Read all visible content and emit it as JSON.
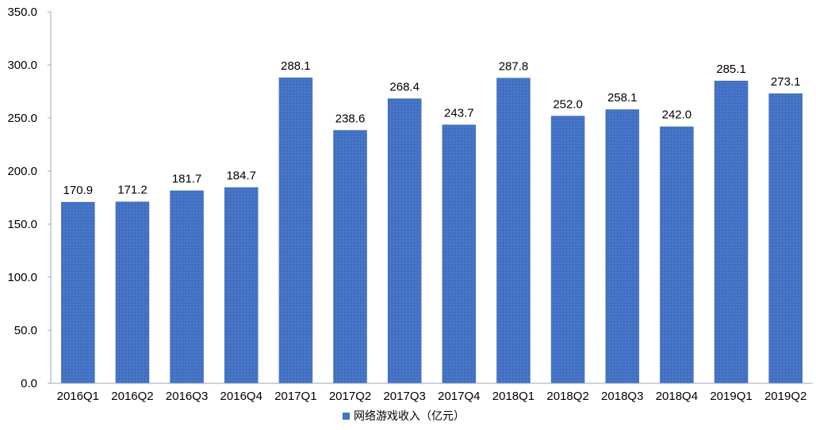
{
  "chart_data": {
    "type": "bar",
    "title": "",
    "xlabel": "",
    "ylabel": "",
    "categories": [
      "2016Q1",
      "2016Q2",
      "2016Q3",
      "2016Q4",
      "2017Q1",
      "2017Q2",
      "2017Q3",
      "2017Q4",
      "2018Q1",
      "2018Q2",
      "2018Q3",
      "2018Q4",
      "2019Q1",
      "2019Q2"
    ],
    "series": [
      {
        "name": "网络游戏收入（亿元）",
        "values": [
          170.9,
          171.2,
          181.7,
          184.7,
          288.1,
          238.6,
          268.4,
          243.7,
          287.8,
          252.0,
          258.1,
          242.0,
          285.1,
          273.1
        ],
        "color": "#4472C4"
      }
    ],
    "ylim": [
      0,
      350
    ],
    "yticks": [
      "0.0",
      "50.0",
      "100.0",
      "150.0",
      "200.0",
      "250.0",
      "300.0",
      "350.0"
    ],
    "grid": false,
    "legend": "bottom"
  }
}
